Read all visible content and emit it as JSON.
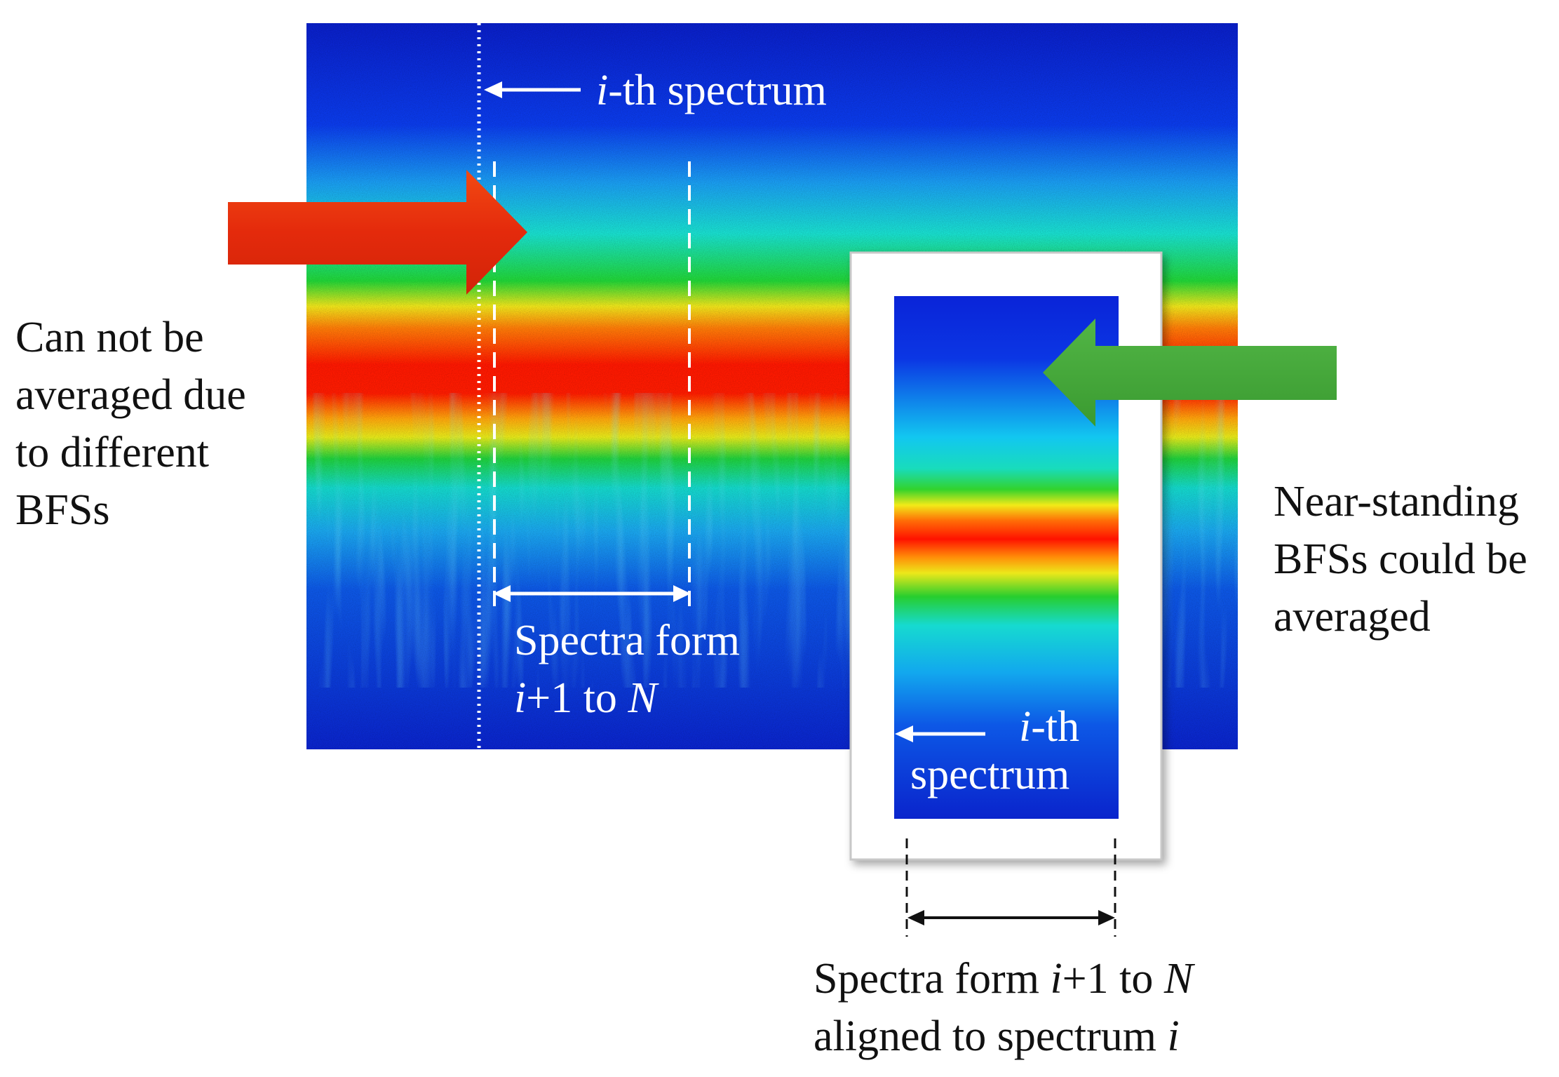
{
  "figure": {
    "top_label": {
      "italic": "i",
      "text": "-th spectrum"
    },
    "window_label": {
      "line1": "Spectra form",
      "line2_italic": "i",
      "line2_mid": "+1 to ",
      "line2_italic_end": "N"
    },
    "left_note": [
      "Can not be",
      "averaged due",
      "to different",
      "BFSs"
    ],
    "right_note": [
      "Near-standing",
      "BFSs could be",
      "averaged"
    ],
    "inset_label": {
      "italic": "i",
      "line1": "-th",
      "line2": "spectrum"
    },
    "bottom_caption": {
      "line1_pre": "Spectra form ",
      "line1_italic": "i",
      "line1_mid": "+1 to ",
      "line1_italic_end": "N",
      "line2_pre": "aligned to spectrum ",
      "line2_italic": "i"
    }
  },
  "colors": {
    "left_arrow": "#e8300e",
    "right_arrow": "#45a83a",
    "map_low": "#0a22d8",
    "map_peak": "#ff1500"
  },
  "icons": {
    "left_arrow": "red-block-arrow-right-icon",
    "right_arrow": "green-block-arrow-left-icon"
  }
}
